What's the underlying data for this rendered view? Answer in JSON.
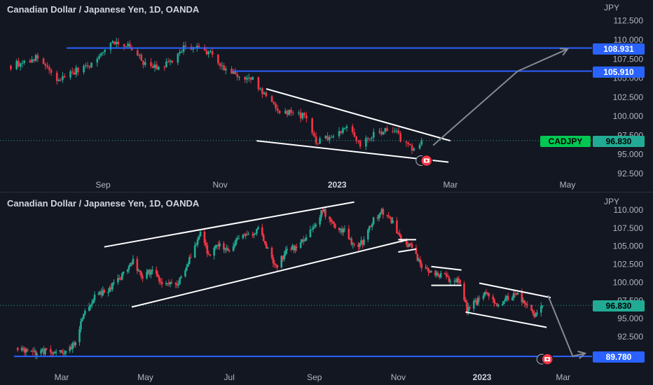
{
  "panes": [
    {
      "title": "Canadian Dollar / Japanese Yen, 1D, OANDA",
      "unit": "JPY",
      "y_ticks": [
        "112.500",
        "110.000",
        "107.500",
        "105.000",
        "102.500",
        "100.000",
        "97.500",
        "95.000",
        "92.500"
      ],
      "x_ticks": [
        "Sep",
        "Nov",
        "2023",
        "Mar",
        "May"
      ],
      "price_tags": [
        {
          "label": "108.931",
          "color": "#2962ff"
        },
        {
          "label": "105.910",
          "color": "#2962ff"
        },
        {
          "label": "96.830",
          "color": "#22ab94"
        }
      ],
      "symbol_tag": "CADJPY"
    },
    {
      "title": "Canadian Dollar / Japanese Yen, 1D, OANDA",
      "unit": "JPY",
      "y_ticks": [
        "110.000",
        "107.500",
        "105.000",
        "102.500",
        "100.000",
        "97.500",
        "95.000",
        "92.500"
      ],
      "x_ticks": [
        "Mar",
        "May",
        "Jul",
        "Sep",
        "Nov",
        "2023",
        "Mar"
      ],
      "price_tags": [
        {
          "label": "96.830",
          "color": "#22ab94"
        },
        {
          "label": "89.780",
          "color": "#2962ff"
        }
      ]
    }
  ],
  "chart_data": [
    {
      "type": "candlestick",
      "title": "Canadian Dollar / Japanese Yen, 1D, OANDA",
      "symbol": "CADJPY",
      "ylabel": "JPY",
      "ylim": [
        91.5,
        113.5
      ],
      "x_ticks": [
        "Sep",
        "Nov",
        "2023",
        "Mar",
        "May"
      ],
      "last_price": 96.83,
      "horizontal_levels": [
        108.931,
        105.91
      ],
      "colors": {
        "up": "#22ab94",
        "down": "#f23645",
        "level": "#2962ff"
      },
      "close_path": [
        {
          "date": "2022-07-15",
          "value": 106.6
        },
        {
          "date": "2022-07-29",
          "value": 107.7
        },
        {
          "date": "2022-08-08",
          "value": 104.6
        },
        {
          "date": "2022-08-15",
          "value": 105.7
        },
        {
          "date": "2022-08-26",
          "value": 106.8
        },
        {
          "date": "2022-09-06",
          "value": 109.9
        },
        {
          "date": "2022-09-14",
          "value": 109.2
        },
        {
          "date": "2022-09-22",
          "value": 107.1
        },
        {
          "date": "2022-09-29",
          "value": 106.2
        },
        {
          "date": "2022-10-07",
          "value": 107.2
        },
        {
          "date": "2022-10-14",
          "value": 109.2
        },
        {
          "date": "2022-10-21",
          "value": 108.9
        },
        {
          "date": "2022-10-28",
          "value": 108.2
        },
        {
          "date": "2022-11-03",
          "value": 106.1
        },
        {
          "date": "2022-11-11",
          "value": 105.2
        },
        {
          "date": "2022-11-18",
          "value": 104.7
        },
        {
          "date": "2022-11-25",
          "value": 102.6
        },
        {
          "date": "2022-12-02",
          "value": 100.7
        },
        {
          "date": "2022-12-09",
          "value": 100.4
        },
        {
          "date": "2022-12-16",
          "value": 99.8
        },
        {
          "date": "2022-12-21",
          "value": 96.6
        },
        {
          "date": "2022-12-30",
          "value": 97.6
        },
        {
          "date": "2023-01-06",
          "value": 98.8
        },
        {
          "date": "2023-01-13",
          "value": 96.3
        },
        {
          "date": "2023-01-20",
          "value": 97.6
        },
        {
          "date": "2023-01-26",
          "value": 98.2
        },
        {
          "date": "2023-02-01",
          "value": 97.7
        },
        {
          "date": "2023-02-06",
          "value": 96.2
        },
        {
          "date": "2023-02-10",
          "value": 95.5
        },
        {
          "date": "2023-02-14",
          "value": 96.83
        }
      ],
      "trendlines": [
        {
          "name": "falling-wedge-top",
          "points": [
            {
              "date": "2022-11-25",
              "value": 103.6
            },
            {
              "date": "2023-03-01",
              "value": 96.8
            }
          ]
        },
        {
          "name": "falling-wedge-bottom",
          "points": [
            {
              "date": "2022-11-20",
              "value": 96.8
            },
            {
              "date": "2023-02-28",
              "value": 94.0
            }
          ]
        },
        {
          "name": "projection",
          "points": [
            {
              "date": "2023-02-20",
              "value": 96.2
            },
            {
              "date": "2023-04-05",
              "value": 105.9
            },
            {
              "date": "2023-05-01",
              "value": 108.8
            }
          ]
        }
      ]
    },
    {
      "type": "candlestick",
      "title": "Canadian Dollar / Japanese Yen, 1D, OANDA",
      "symbol": "CADJPY",
      "ylabel": "JPY",
      "ylim": [
        89.0,
        111.0
      ],
      "x_ticks": [
        "Mar",
        "May",
        "Jul",
        "Sep",
        "Nov",
        "2023",
        "Mar"
      ],
      "last_price": 96.83,
      "horizontal_levels": [
        89.78
      ],
      "colors": {
        "up": "#22ab94",
        "down": "#f23645",
        "level": "#2962ff"
      },
      "close_path": [
        {
          "date": "2022-01-28",
          "value": 91.0
        },
        {
          "date": "2022-02-10",
          "value": 90.3
        },
        {
          "date": "2022-02-24",
          "value": 90.6
        },
        {
          "date": "2022-03-04",
          "value": 90.2
        },
        {
          "date": "2022-03-10",
          "value": 91.6
        },
        {
          "date": "2022-03-17",
          "value": 95.6
        },
        {
          "date": "2022-03-25",
          "value": 98.2
        },
        {
          "date": "2022-04-05",
          "value": 99.2
        },
        {
          "date": "2022-04-15",
          "value": 101.1
        },
        {
          "date": "2022-04-22",
          "value": 102.9
        },
        {
          "date": "2022-04-28",
          "value": 100.8
        },
        {
          "date": "2022-05-06",
          "value": 101.6
        },
        {
          "date": "2022-05-13",
          "value": 99.5
        },
        {
          "date": "2022-05-24",
          "value": 99.8
        },
        {
          "date": "2022-06-03",
          "value": 103.4
        },
        {
          "date": "2022-06-10",
          "value": 106.9
        },
        {
          "date": "2022-06-16",
          "value": 103.9
        },
        {
          "date": "2022-06-24",
          "value": 105.2
        },
        {
          "date": "2022-07-01",
          "value": 104.5
        },
        {
          "date": "2022-07-08",
          "value": 106.2
        },
        {
          "date": "2022-07-15",
          "value": 106.6
        },
        {
          "date": "2022-07-22",
          "value": 107.3
        },
        {
          "date": "2022-07-29",
          "value": 104.5
        },
        {
          "date": "2022-08-04",
          "value": 102.1
        },
        {
          "date": "2022-08-12",
          "value": 104.4
        },
        {
          "date": "2022-08-19",
          "value": 104.9
        },
        {
          "date": "2022-08-26",
          "value": 106.0
        },
        {
          "date": "2022-09-02",
          "value": 108.0
        },
        {
          "date": "2022-09-07",
          "value": 110.0
        },
        {
          "date": "2022-09-15",
          "value": 107.9
        },
        {
          "date": "2022-09-23",
          "value": 107.0
        },
        {
          "date": "2022-09-29",
          "value": 105.1
        },
        {
          "date": "2022-10-07",
          "value": 105.6
        },
        {
          "date": "2022-10-14",
          "value": 108.6
        },
        {
          "date": "2022-10-20",
          "value": 109.7
        },
        {
          "date": "2022-10-28",
          "value": 108.3
        },
        {
          "date": "2022-11-03",
          "value": 105.6
        },
        {
          "date": "2022-11-10",
          "value": 104.9
        },
        {
          "date": "2022-11-17",
          "value": 102.6
        },
        {
          "date": "2022-11-24",
          "value": 101.2
        },
        {
          "date": "2022-12-01",
          "value": 100.9
        },
        {
          "date": "2022-12-09",
          "value": 100.5
        },
        {
          "date": "2022-12-16",
          "value": 100.0
        },
        {
          "date": "2022-12-21",
          "value": 96.1
        },
        {
          "date": "2022-12-30",
          "value": 97.7
        },
        {
          "date": "2023-01-05",
          "value": 98.7
        },
        {
          "date": "2023-01-12",
          "value": 96.6
        },
        {
          "date": "2023-01-19",
          "value": 97.9
        },
        {
          "date": "2023-01-26",
          "value": 98.4
        },
        {
          "date": "2023-02-02",
          "value": 97.2
        },
        {
          "date": "2023-02-08",
          "value": 95.6
        },
        {
          "date": "2023-02-14",
          "value": 96.83
        }
      ],
      "trendlines": [
        {
          "name": "channel-top",
          "points": [
            {
              "date": "2022-04-01",
              "value": 104.9
            },
            {
              "date": "2022-09-30",
              "value": 111.1
            }
          ]
        },
        {
          "name": "channel-bottom",
          "points": [
            {
              "date": "2022-04-21",
              "value": 96.6
            },
            {
              "date": "2022-11-08",
              "value": 105.9
            }
          ]
        },
        {
          "name": "box-1-top",
          "points": [
            {
              "date": "2022-11-01",
              "value": 105.9
            },
            {
              "date": "2022-11-14",
              "value": 105.9
            }
          ]
        },
        {
          "name": "box-1-bottom",
          "points": [
            {
              "date": "2022-11-01",
              "value": 104.2
            },
            {
              "date": "2022-11-14",
              "value": 104.6
            }
          ]
        },
        {
          "name": "box-2-top",
          "points": [
            {
              "date": "2022-11-25",
              "value": 102.2
            },
            {
              "date": "2022-12-17",
              "value": 101.7
            }
          ]
        },
        {
          "name": "box-2-bottom",
          "points": [
            {
              "date": "2022-11-25",
              "value": 99.6
            },
            {
              "date": "2022-12-17",
              "value": 99.6
            }
          ]
        },
        {
          "name": "falling-wedge-top",
          "points": [
            {
              "date": "2022-12-30",
              "value": 99.9
            },
            {
              "date": "2023-02-20",
              "value": 97.9
            }
          ]
        },
        {
          "name": "falling-wedge-bottom",
          "points": [
            {
              "date": "2022-12-20",
              "value": 95.9
            },
            {
              "date": "2023-02-17",
              "value": 93.8
            }
          ]
        },
        {
          "name": "projection",
          "points": [
            {
              "date": "2023-02-18",
              "value": 98.2
            },
            {
              "date": "2023-03-08",
              "value": 89.8
            },
            {
              "date": "2023-03-17",
              "value": 90.2
            }
          ]
        }
      ]
    }
  ]
}
